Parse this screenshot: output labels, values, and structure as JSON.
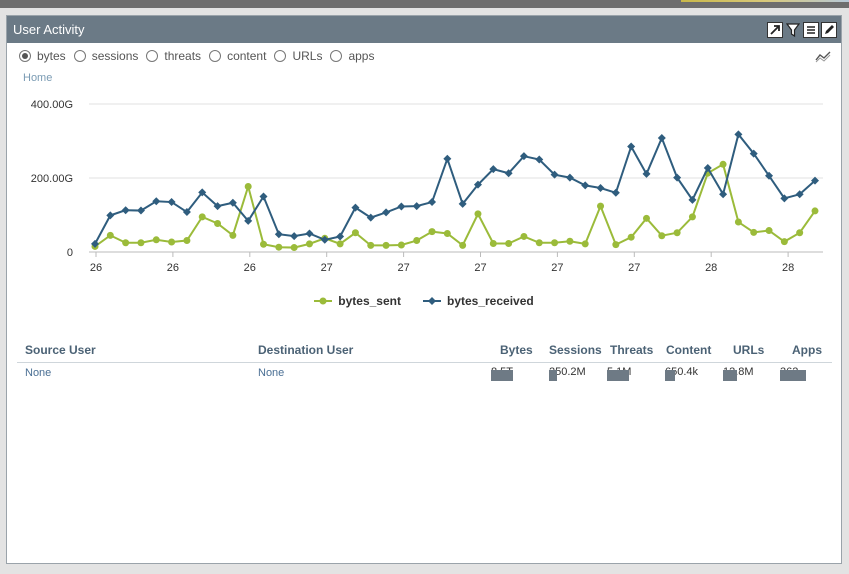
{
  "panel": {
    "title": "User Activity",
    "tools": [
      "external-link-icon",
      "filter-icon",
      "list-icon",
      "edit-icon"
    ]
  },
  "radios": {
    "selected": "bytes",
    "options": [
      "bytes",
      "sessions",
      "threats",
      "content",
      "URLs",
      "apps"
    ]
  },
  "breadcrumb": {
    "home": "Home"
  },
  "chart_data": {
    "type": "line",
    "y_ticks": [
      "400.00G",
      "200.00G",
      "0"
    ],
    "ylim": [
      0,
      400
    ],
    "x_ticks": [
      "26",
      "26",
      "26",
      "27",
      "27",
      "27",
      "27",
      "27",
      "28",
      "28"
    ],
    "series": [
      {
        "name": "bytes_sent",
        "color": "#9bbb3a",
        "marker": "circle",
        "values": [
          15,
          45,
          25,
          25,
          33,
          27,
          31,
          95,
          77,
          45,
          177,
          21,
          13,
          12,
          22,
          37,
          22,
          52,
          18,
          18,
          19,
          31,
          55,
          50,
          18,
          103,
          23,
          23,
          42,
          25,
          25,
          29,
          22,
          124,
          20,
          40,
          91,
          44,
          52,
          95,
          213,
          237,
          81,
          53,
          58,
          28,
          52,
          111
        ]
      },
      {
        "name": "bytes_received",
        "color": "#2f5d7e",
        "marker": "diamond",
        "values": [
          22,
          99,
          113,
          112,
          137,
          135,
          108,
          161,
          124,
          133,
          84,
          150,
          48,
          43,
          50,
          33,
          42,
          120,
          93,
          107,
          123,
          124,
          135,
          252,
          130,
          182,
          224,
          213,
          259,
          250,
          209,
          201,
          180,
          173,
          160,
          285,
          211,
          308,
          201,
          141,
          227,
          156,
          318,
          266,
          206,
          145,
          156,
          193
        ]
      }
    ],
    "legend_position": "bottom-center"
  },
  "table": {
    "headers": [
      "Source User",
      "Destination User",
      "Bytes",
      "Sessions",
      "Threats",
      "Content",
      "URLs",
      "Apps"
    ],
    "rows": [
      {
        "source_user": "None",
        "destination_user": "None",
        "bytes": "8.5T",
        "sessions": "250.2M",
        "threats": "5.1M",
        "content": "650.4k",
        "urls": "12.8M",
        "apps": "362"
      }
    ]
  }
}
